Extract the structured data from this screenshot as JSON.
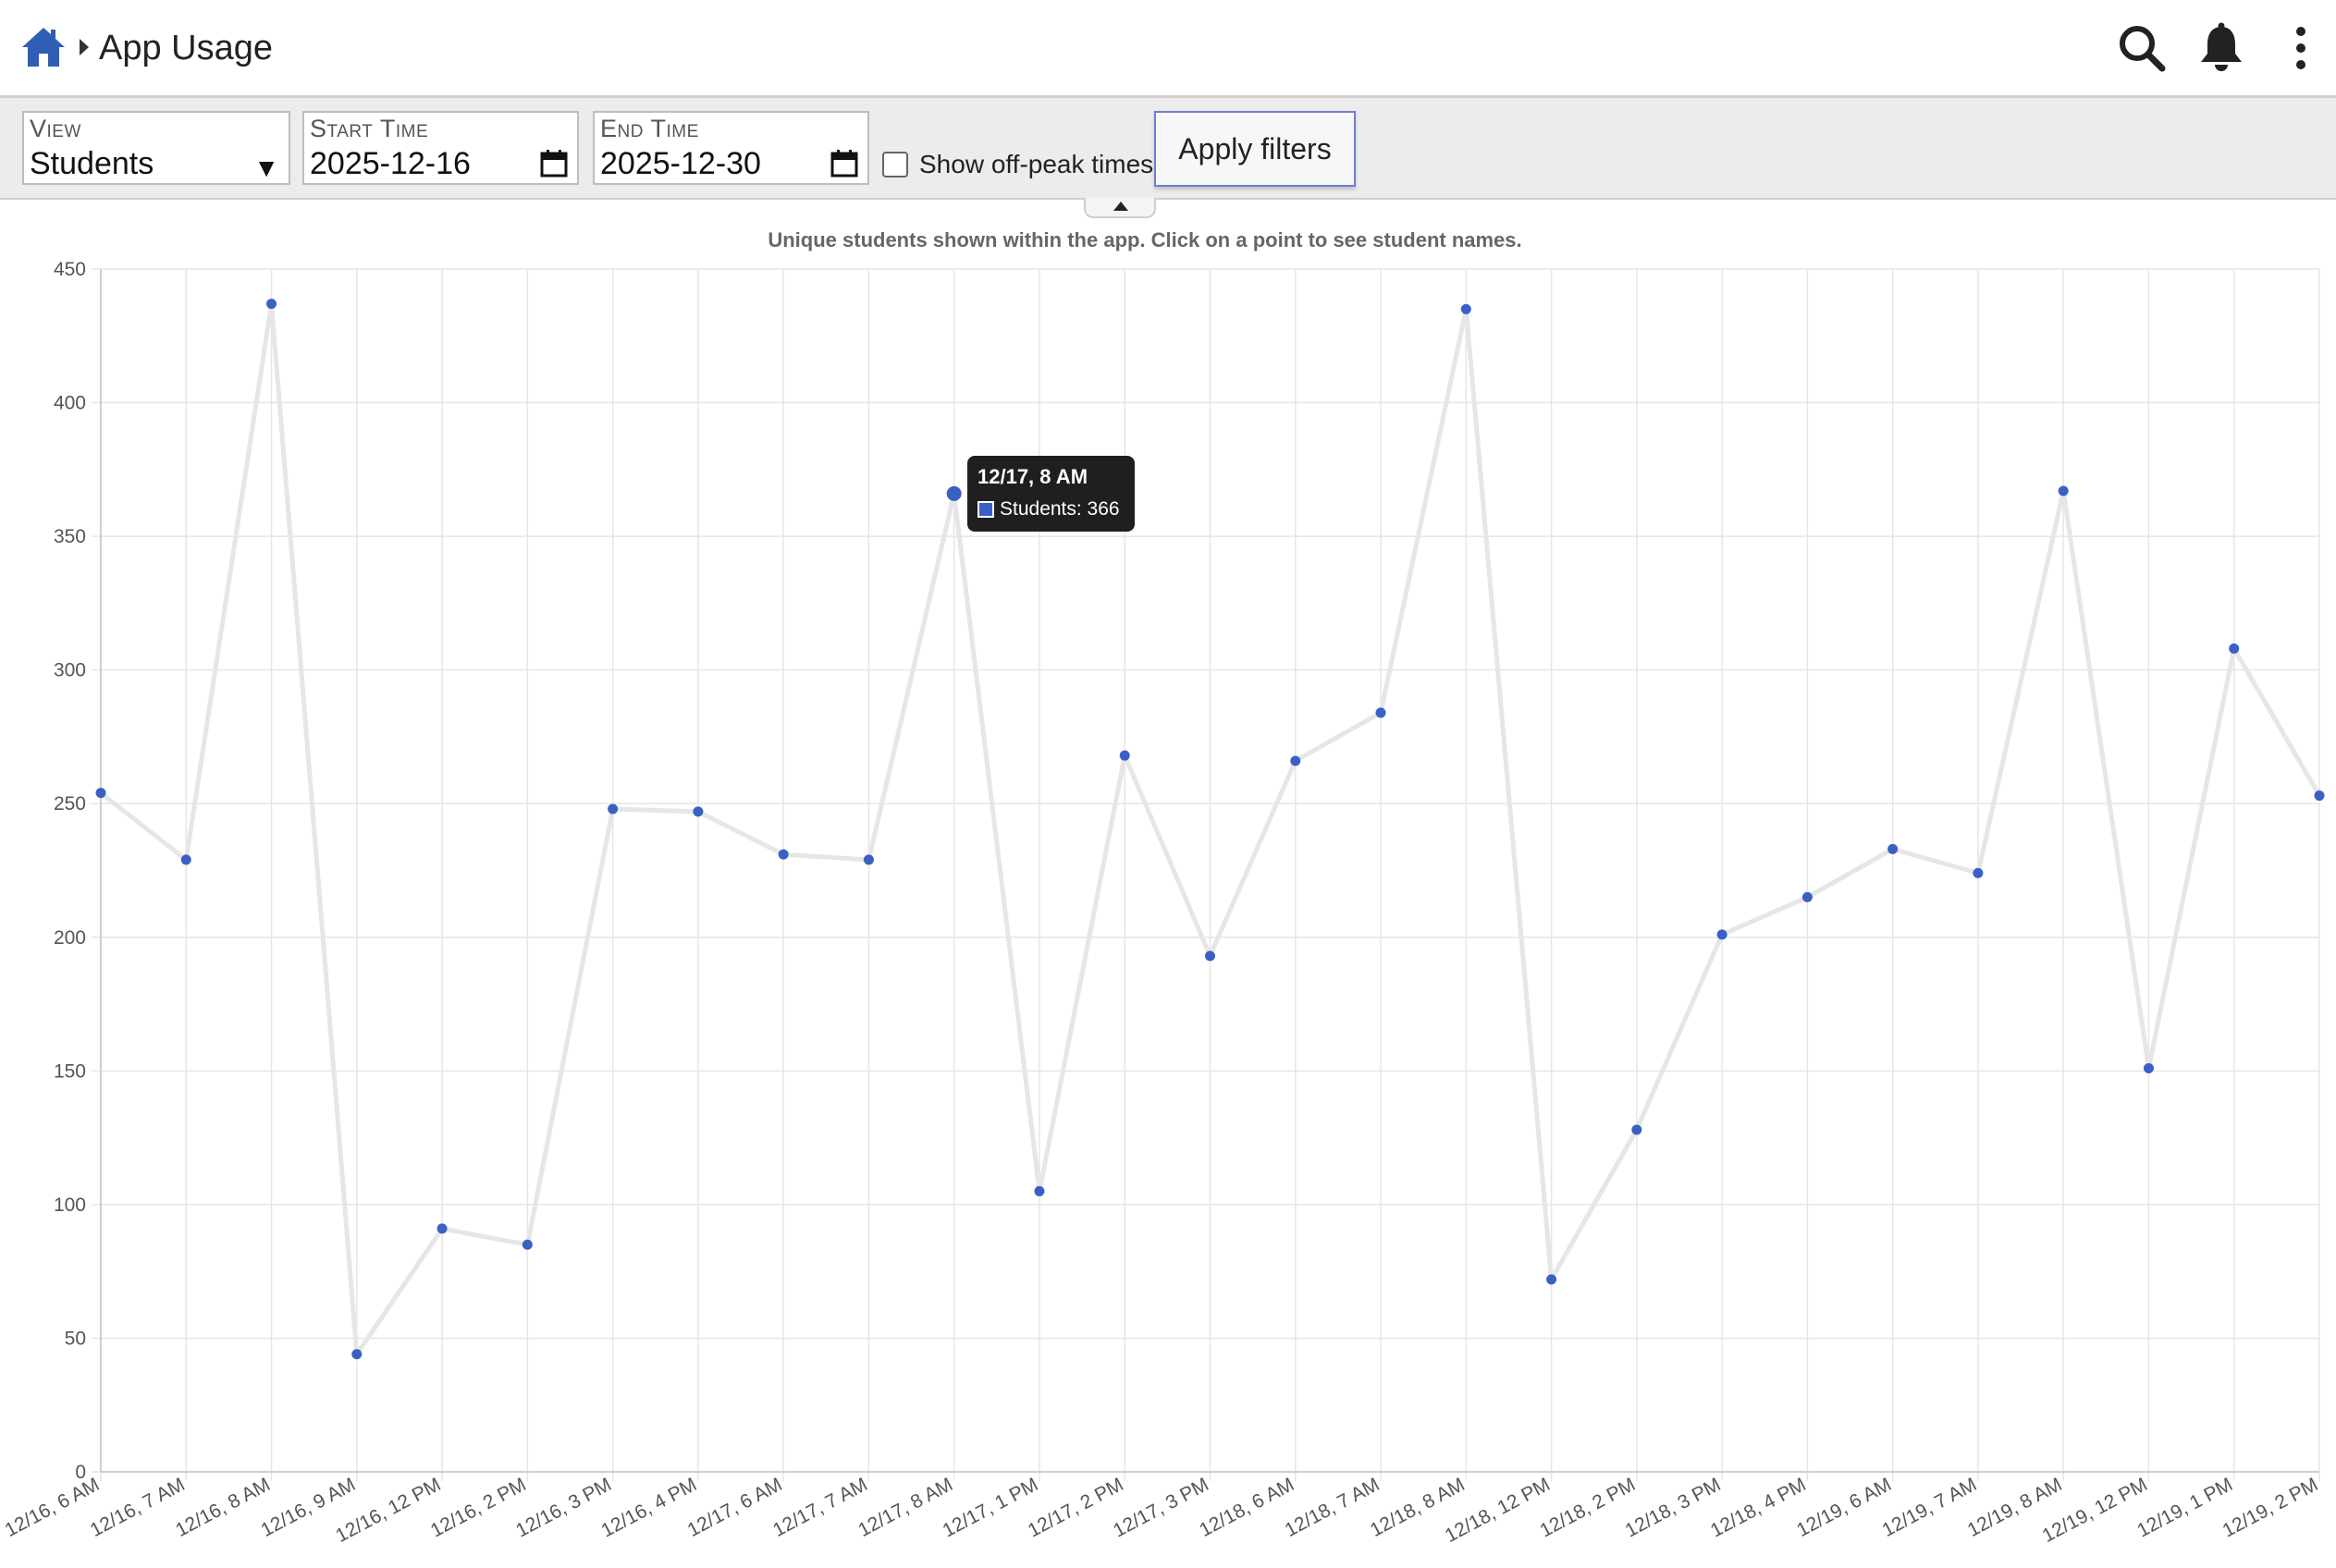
{
  "header": {
    "title": "App Usage",
    "icons": [
      "home-icon",
      "chevron-right-icon",
      "search-icon",
      "bell-icon",
      "more-vertical-icon"
    ]
  },
  "filters": {
    "view": {
      "label": "View",
      "value": "Students"
    },
    "start_time": {
      "label": "Start Time",
      "value": "2025-12-16"
    },
    "end_time": {
      "label": "End Time",
      "value": "2025-12-30"
    },
    "off_peak": {
      "label": "Show off-peak times",
      "checked": false
    },
    "apply_label": "Apply filters"
  },
  "chart_data": {
    "type": "line",
    "subtitle": "Unique students shown within the app. Click on a point to see student names.",
    "categories": [
      "12/16, 6 AM",
      "12/16, 7 AM",
      "12/16, 8 AM",
      "12/16, 9 AM",
      "12/16, 12 PM",
      "12/16, 2 PM",
      "12/16, 3 PM",
      "12/16, 4 PM",
      "12/17, 6 AM",
      "12/17, 7 AM",
      "12/17, 8 AM",
      "12/17, 1 PM",
      "12/17, 2 PM",
      "12/17, 3 PM",
      "12/18, 6 AM",
      "12/18, 7 AM",
      "12/18, 8 AM",
      "12/18, 12 PM",
      "12/18, 2 PM",
      "12/18, 3 PM",
      "12/18, 4 PM",
      "12/19, 6 AM",
      "12/19, 7 AM",
      "12/19, 8 AM",
      "12/19, 12 PM",
      "12/19, 1 PM",
      "12/19, 2 PM"
    ],
    "series": [
      {
        "name": "Students",
        "values": [
          254,
          229,
          437,
          44,
          91,
          85,
          248,
          247,
          231,
          229,
          366,
          105,
          268,
          193,
          266,
          284,
          435,
          72,
          128,
          201,
          215,
          233,
          224,
          367,
          151,
          308,
          253
        ]
      }
    ],
    "yticks": [
      0,
      50,
      100,
      150,
      200,
      250,
      300,
      350,
      400,
      450
    ],
    "ylim": [
      0,
      450
    ],
    "grid": true,
    "legend": "none",
    "colors": {
      "line": "#e6e6e6",
      "point": "#3b60c4",
      "grid": "#e6e6e6"
    },
    "tooltip": {
      "title": "12/17, 8 AM",
      "text": "Students: 366",
      "index": 10
    }
  }
}
